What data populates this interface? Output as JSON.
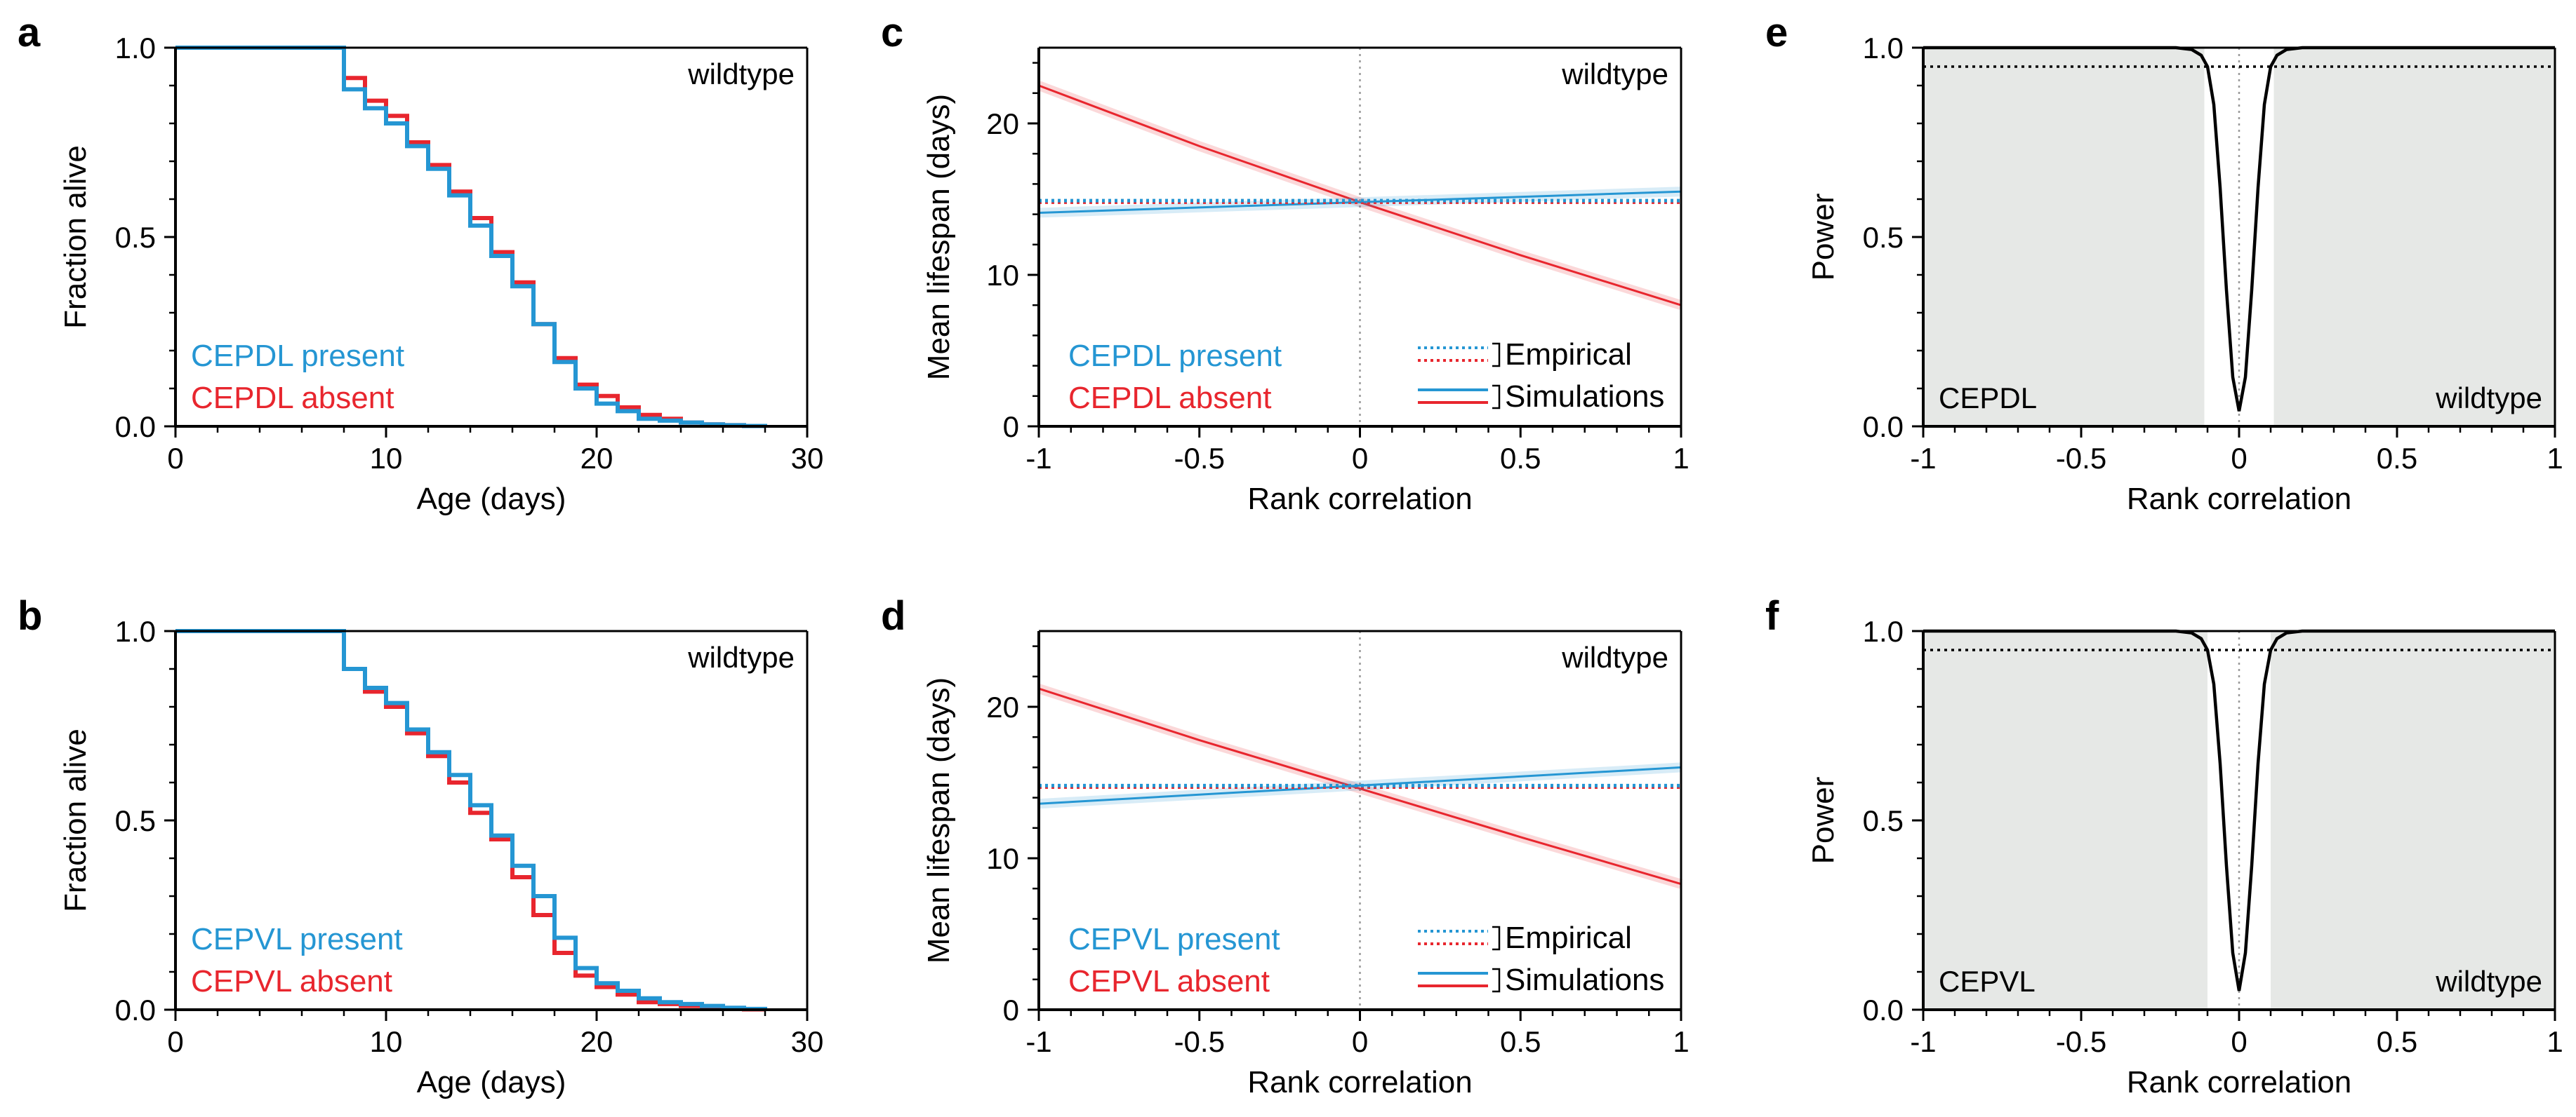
{
  "chart_data": [
    {
      "panel": "a",
      "type": "line",
      "step": true,
      "xlabel": "Age (days)",
      "ylabel": "Fraction alive",
      "xlim": [
        0,
        30
      ],
      "ylim": [
        0,
        1
      ],
      "xticks": [
        "0",
        "10",
        "20",
        "30"
      ],
      "yticks": [
        "0.0",
        "0.5",
        "1.0"
      ],
      "annotation": "wildtype",
      "series": [
        {
          "name": "CEPDL absent",
          "color": "#e8262e",
          "x": [
            0,
            8,
            9,
            10,
            11,
            12,
            13,
            14,
            15,
            16,
            17,
            18,
            19,
            20,
            21,
            22,
            23,
            24,
            25,
            26,
            27,
            28
          ],
          "y": [
            1.0,
            0.92,
            0.86,
            0.82,
            0.75,
            0.69,
            0.62,
            0.55,
            0.46,
            0.38,
            0.27,
            0.18,
            0.11,
            0.08,
            0.05,
            0.03,
            0.02,
            0.01,
            0.005,
            0.003,
            0.001,
            0.0
          ]
        },
        {
          "name": "CEPDL present",
          "color": "#2596d3",
          "x": [
            0,
            8,
            9,
            10,
            11,
            12,
            13,
            14,
            15,
            16,
            17,
            18,
            19,
            20,
            21,
            22,
            23,
            24,
            25,
            26,
            27,
            28
          ],
          "y": [
            1.0,
            0.89,
            0.84,
            0.8,
            0.74,
            0.68,
            0.61,
            0.53,
            0.45,
            0.37,
            0.27,
            0.17,
            0.1,
            0.06,
            0.04,
            0.02,
            0.015,
            0.01,
            0.005,
            0.003,
            0.001,
            0.0
          ]
        }
      ]
    },
    {
      "panel": "b",
      "type": "line",
      "step": true,
      "xlabel": "Age (days)",
      "ylabel": "Fraction alive",
      "xlim": [
        0,
        30
      ],
      "ylim": [
        0,
        1
      ],
      "xticks": [
        "0",
        "10",
        "20",
        "30"
      ],
      "yticks": [
        "0.0",
        "0.5",
        "1.0"
      ],
      "annotation": "wildtype",
      "series": [
        {
          "name": "CEPVL absent",
          "color": "#e8262e",
          "x": [
            0,
            8,
            9,
            10,
            11,
            12,
            13,
            14,
            15,
            16,
            17,
            18,
            19,
            20,
            21,
            22,
            23,
            24,
            25,
            26,
            27,
            28
          ],
          "y": [
            1.0,
            0.9,
            0.84,
            0.8,
            0.73,
            0.67,
            0.6,
            0.52,
            0.45,
            0.35,
            0.25,
            0.15,
            0.09,
            0.06,
            0.04,
            0.02,
            0.015,
            0.01,
            0.005,
            0.003,
            0.001,
            0.0
          ]
        },
        {
          "name": "CEPVL present",
          "color": "#2596d3",
          "x": [
            0,
            8,
            9,
            10,
            11,
            12,
            13,
            14,
            15,
            16,
            17,
            18,
            19,
            20,
            21,
            22,
            23,
            24,
            25,
            26,
            27,
            28
          ],
          "y": [
            1.0,
            0.9,
            0.85,
            0.81,
            0.74,
            0.68,
            0.62,
            0.54,
            0.46,
            0.38,
            0.3,
            0.19,
            0.11,
            0.07,
            0.05,
            0.03,
            0.02,
            0.015,
            0.01,
            0.005,
            0.002,
            0.0
          ]
        }
      ]
    },
    {
      "panel": "c",
      "type": "line",
      "xlabel": "Rank correlation",
      "ylabel": "Mean lifespan (days)",
      "xlim": [
        -1,
        1
      ],
      "ylim": [
        0,
        25
      ],
      "xticks": [
        "-1",
        "-0.5",
        "0",
        "0.5",
        "1"
      ],
      "yticks": [
        "0",
        "10",
        "20"
      ],
      "annotation": "wildtype",
      "legend": [
        "CEPDL present",
        "CEPDL absent"
      ],
      "line_legend": [
        "Empirical",
        "Simulations"
      ],
      "series": [
        {
          "name": "CEPDL absent",
          "color": "#e8262e",
          "kind": "simulation",
          "x": [
            -1,
            -0.5,
            0,
            0.5,
            1
          ],
          "y": [
            22.5,
            18.5,
            14.8,
            11.3,
            8.0
          ]
        },
        {
          "name": "CEPDL present",
          "color": "#2596d3",
          "kind": "simulation",
          "x": [
            -1,
            1
          ],
          "y": [
            14.1,
            15.5
          ]
        },
        {
          "name": "CEPDL absent",
          "color": "#e8262e",
          "kind": "empirical",
          "x": [
            -1,
            1
          ],
          "y": [
            14.8,
            14.8
          ]
        },
        {
          "name": "CEPDL present",
          "color": "#2596d3",
          "kind": "empirical",
          "x": [
            -1,
            1
          ],
          "y": [
            14.9,
            14.9
          ]
        }
      ]
    },
    {
      "panel": "d",
      "type": "line",
      "xlabel": "Rank correlation",
      "ylabel": "Mean lifespan (days)",
      "xlim": [
        -1,
        1
      ],
      "ylim": [
        0,
        25
      ],
      "xticks": [
        "-1",
        "-0.5",
        "0",
        "0.5",
        "1"
      ],
      "yticks": [
        "0",
        "10",
        "20"
      ],
      "annotation": "wildtype",
      "legend": [
        "CEPVL present",
        "CEPVL absent"
      ],
      "line_legend": [
        "Empirical",
        "Simulations"
      ],
      "series": [
        {
          "name": "CEPVL absent",
          "color": "#e8262e",
          "kind": "simulation",
          "x": [
            -1,
            -0.5,
            0,
            0.5,
            1
          ],
          "y": [
            21.2,
            17.8,
            14.6,
            11.4,
            8.3
          ]
        },
        {
          "name": "CEPVL present",
          "color": "#2596d3",
          "kind": "simulation",
          "x": [
            -1,
            1
          ],
          "y": [
            13.6,
            16.0
          ]
        },
        {
          "name": "CEPVL absent",
          "color": "#e8262e",
          "kind": "empirical",
          "x": [
            -1,
            1
          ],
          "y": [
            14.7,
            14.7
          ]
        },
        {
          "name": "CEPVL present",
          "color": "#2596d3",
          "kind": "empirical",
          "x": [
            -1,
            1
          ],
          "y": [
            14.8,
            14.8
          ]
        }
      ]
    },
    {
      "panel": "e",
      "type": "line",
      "xlabel": "Rank correlation",
      "ylabel": "Power",
      "xlim": [
        -1,
        1
      ],
      "ylim": [
        0,
        1
      ],
      "xticks": [
        "-1",
        "-0.5",
        "0",
        "0.5",
        "1"
      ],
      "yticks": [
        "0.0",
        "0.5",
        "1.0"
      ],
      "annotation": "wildtype",
      "label_left": "CEPDL",
      "threshold": 0.95,
      "shaded_regions": [
        [
          -1,
          -0.11
        ],
        [
          0.11,
          1
        ]
      ],
      "series": [
        {
          "name": "Power",
          "color": "#000000",
          "x": [
            -1,
            -0.2,
            -0.15,
            -0.12,
            -0.1,
            -0.08,
            -0.06,
            -0.04,
            -0.02,
            0,
            0.02,
            0.04,
            0.06,
            0.08,
            0.1,
            0.12,
            0.15,
            0.2,
            1
          ],
          "y": [
            1.0,
            1.0,
            0.995,
            0.98,
            0.95,
            0.85,
            0.63,
            0.36,
            0.13,
            0.04,
            0.13,
            0.36,
            0.63,
            0.85,
            0.95,
            0.98,
            0.995,
            1.0,
            1.0
          ]
        }
      ]
    },
    {
      "panel": "f",
      "type": "line",
      "xlabel": "Rank correlation",
      "ylabel": "Power",
      "xlim": [
        -1,
        1
      ],
      "ylim": [
        0,
        1
      ],
      "xticks": [
        "-1",
        "-0.5",
        "0",
        "0.5",
        "1"
      ],
      "yticks": [
        "0.0",
        "0.5",
        "1.0"
      ],
      "annotation": "wildtype",
      "label_left": "CEPVL",
      "threshold": 0.95,
      "shaded_regions": [
        [
          -1,
          -0.1
        ],
        [
          0.1,
          1
        ]
      ],
      "series": [
        {
          "name": "Power",
          "color": "#000000",
          "x": [
            -1,
            -0.2,
            -0.15,
            -0.12,
            -0.1,
            -0.08,
            -0.06,
            -0.04,
            -0.02,
            0,
            0.02,
            0.04,
            0.06,
            0.08,
            0.1,
            0.12,
            0.15,
            0.2,
            1
          ],
          "y": [
            1.0,
            1.0,
            0.995,
            0.98,
            0.95,
            0.86,
            0.65,
            0.38,
            0.15,
            0.05,
            0.15,
            0.38,
            0.65,
            0.86,
            0.95,
            0.98,
            0.995,
            1.0,
            1.0
          ]
        }
      ]
    }
  ]
}
